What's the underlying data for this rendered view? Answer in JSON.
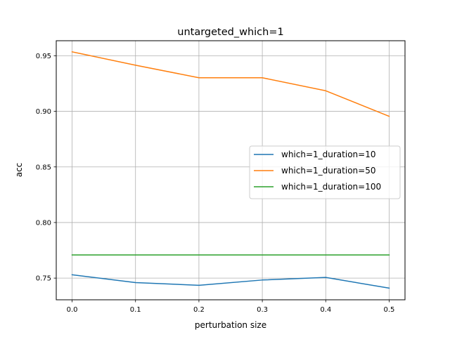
{
  "chart_data": {
    "type": "line",
    "title": "untargeted_which=1",
    "xlabel": "perturbation size",
    "ylabel": "acc",
    "x": [
      0.0,
      0.1,
      0.2,
      0.3,
      0.4,
      0.5
    ],
    "xlim": [
      -0.025,
      0.525
    ],
    "ylim": [
      0.7305,
      0.9635
    ],
    "xticks": [
      "0.0",
      "0.1",
      "0.2",
      "0.3",
      "0.4",
      "0.5"
    ],
    "yticks": [
      "0.75",
      "0.80",
      "0.85",
      "0.90",
      "0.95"
    ],
    "grid": true,
    "legend_position": "center-right",
    "series": [
      {
        "name": "which=1_duration=10",
        "color": "#1f77b4",
        "values": [
          0.753,
          0.746,
          0.7435,
          0.7483,
          0.7506,
          0.741
        ]
      },
      {
        "name": "which=1_duration=50",
        "color": "#ff7f0e",
        "values": [
          0.9535,
          0.9415,
          0.9302,
          0.9302,
          0.9185,
          0.8955
        ]
      },
      {
        "name": "which=1_duration=100",
        "color": "#2ca02c",
        "values": [
          0.7708,
          0.7708,
          0.7708,
          0.7708,
          0.7708,
          0.7708
        ]
      }
    ]
  }
}
